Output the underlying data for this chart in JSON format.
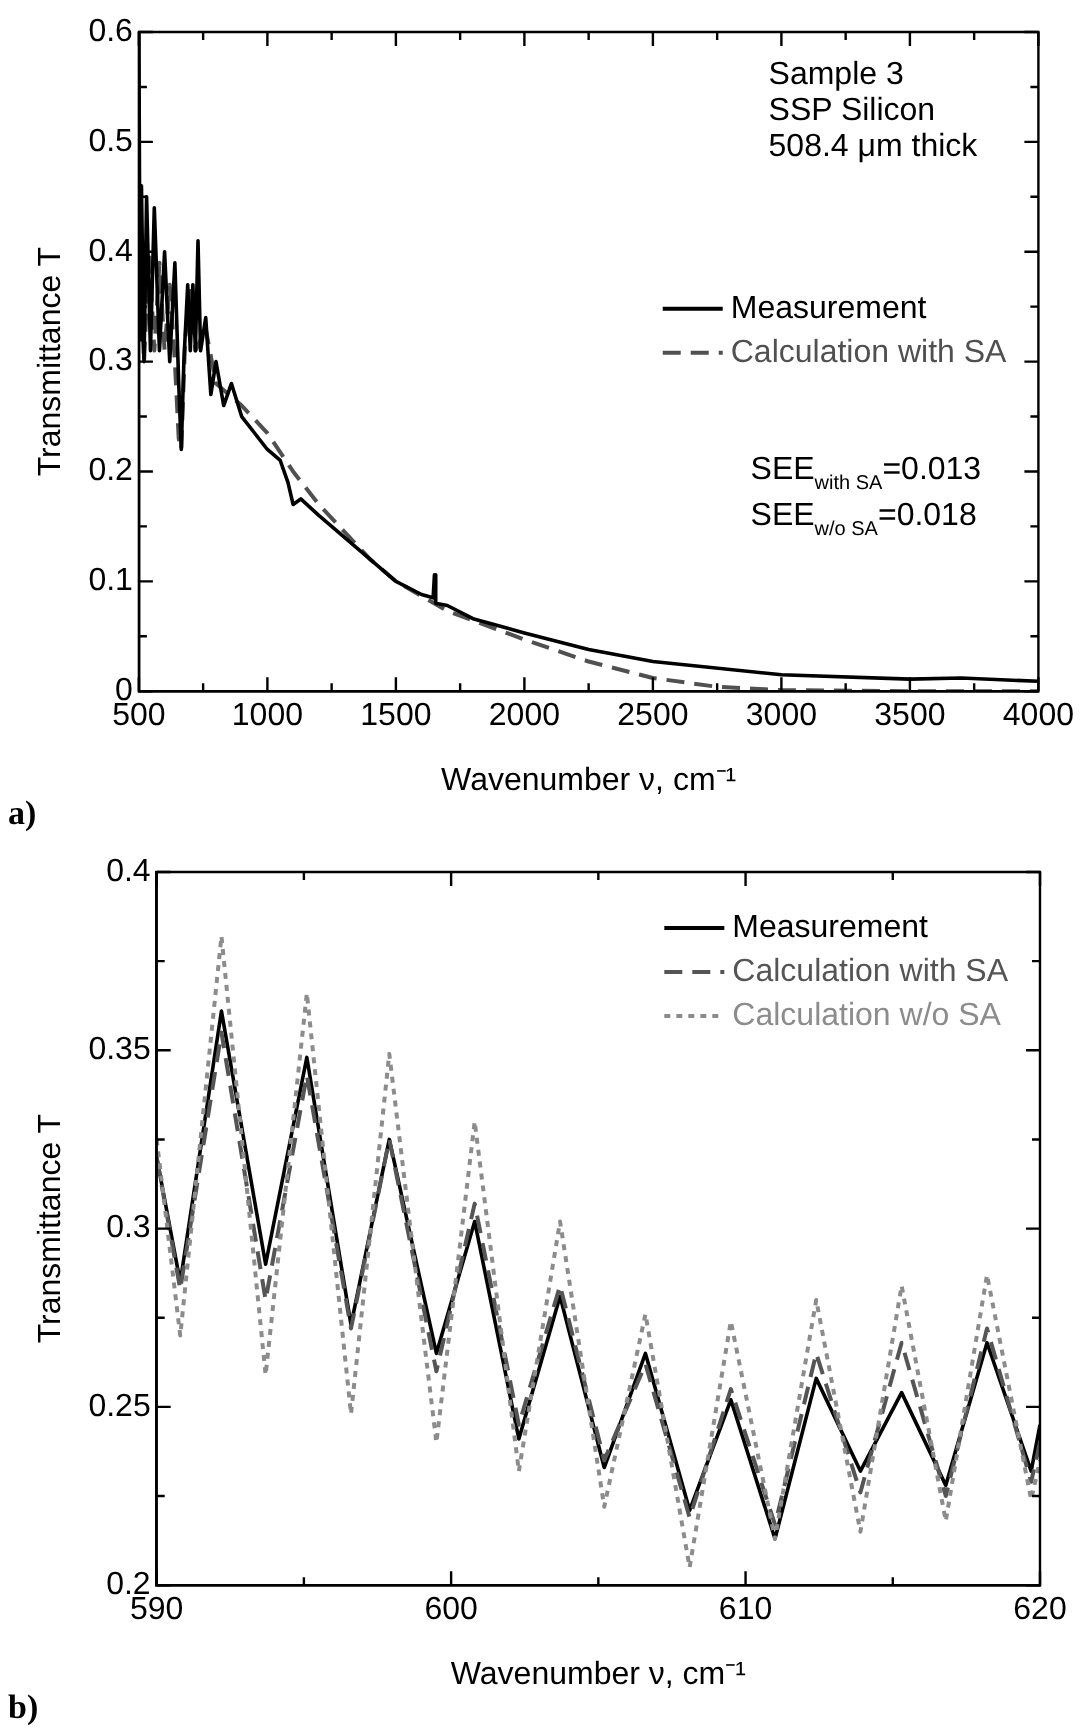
{
  "chart_data": [
    {
      "type": "line",
      "xlabel": "Wavenumber ν, cm⁻¹",
      "ylabel": "Transmittance T",
      "xlim": [
        500,
        4000
      ],
      "ylim": [
        0,
        0.6
      ],
      "xticks": [
        500,
        {
          "value": 750,
          "label": null
        },
        1000,
        {
          "value": 1250,
          "label": null
        },
        1500,
        {
          "value": 1750,
          "label": null
        },
        2000,
        {
          "value": 2250,
          "label": null
        },
        2500,
        {
          "value": 2750,
          "label": null
        },
        3000,
        {
          "value": 3250,
          "label": null
        },
        3500,
        {
          "value": 3750,
          "label": null
        },
        4000
      ],
      "yticks": [
        0,
        {
          "value": 0.05,
          "label": null
        },
        0.1,
        {
          "value": 0.15,
          "label": null
        },
        0.2,
        {
          "value": 0.25,
          "label": null
        },
        0.3,
        {
          "value": 0.35,
          "label": null
        },
        0.4,
        {
          "value": 0.45,
          "label": null
        },
        0.5,
        {
          "value": 0.55,
          "label": null
        },
        0.6
      ],
      "legend": "right",
      "grid": false,
      "marker": "none",
      "annotations": [
        "Sample 3",
        "SSP Silicon",
        "508.4 μm thick",
        "SEE$_{with SA}$=0.013",
        "SEE$_{w/o SA}$=0.018",
        "a)"
      ],
      "series": [
        {
          "name": "Calculation with SA",
          "color": "#505050",
          "line_style": "dashed",
          "x": [
            500,
            520,
            540,
            560,
            580,
            600,
            620,
            640,
            655,
            665,
            680,
            700,
            720,
            760,
            800,
            900,
            1000,
            1100,
            1200,
            1300,
            1400,
            1500,
            1700,
            2000,
            2250,
            2500,
            2750,
            3000,
            3500,
            4000
          ],
          "values": [
            0.4,
            0.3,
            0.4,
            0.31,
            0.39,
            0.31,
            0.37,
            0.3,
            0.23,
            0.22,
            0.32,
            0.37,
            0.31,
            0.33,
            0.28,
            0.26,
            0.235,
            0.2,
            0.17,
            0.145,
            0.12,
            0.1,
            0.073,
            0.047,
            0.027,
            0.012,
            0.004,
            0.001,
            0,
            0
          ]
        },
        {
          "name": "Measurement",
          "color": "#000000",
          "line_style": "solid",
          "x": [
            500,
            505,
            510,
            520,
            530,
            545,
            560,
            580,
            600,
            620,
            640,
            655,
            665,
            675,
            690,
            700,
            710,
            720,
            730,
            740,
            760,
            780,
            800,
            830,
            860,
            900,
            950,
            1000,
            1050,
            1080,
            1100,
            1130,
            1200,
            1300,
            1400,
            1500,
            1600,
            1645,
            1650,
            1655,
            1700,
            1800,
            2000,
            2250,
            2500,
            3000,
            3500,
            3700,
            4000
          ],
          "values": [
            0.6,
            0.32,
            0.46,
            0.3,
            0.45,
            0.31,
            0.44,
            0.31,
            0.4,
            0.3,
            0.39,
            0.28,
            0.22,
            0.3,
            0.37,
            0.31,
            0.37,
            0.31,
            0.41,
            0.31,
            0.34,
            0.27,
            0.3,
            0.26,
            0.28,
            0.25,
            0.235,
            0.22,
            0.21,
            0.19,
            0.17,
            0.175,
            0.16,
            0.14,
            0.12,
            0.1,
            0.088,
            0.085,
            0.106,
            0.08,
            0.078,
            0.066,
            0.053,
            0.038,
            0.027,
            0.015,
            0.011,
            0.012,
            0.009
          ]
        }
      ]
    },
    {
      "type": "line",
      "xlabel": "Wavenumber ν, cm⁻¹",
      "ylabel": "Transmittance T",
      "xlim": [
        590,
        620
      ],
      "ylim": [
        0.2,
        0.4
      ],
      "xticks": [
        590,
        {
          "value": 595,
          "label": null
        },
        600,
        {
          "value": 605,
          "label": null
        },
        610,
        {
          "value": 615,
          "label": null
        },
        620
      ],
      "yticks": [
        0.2,
        {
          "value": 0.225,
          "label": null
        },
        0.25,
        {
          "value": 0.275,
          "label": null
        },
        0.3,
        {
          "value": 0.325,
          "label": null
        },
        0.35,
        {
          "value": 0.375,
          "label": null
        },
        0.4
      ],
      "legend": "top right",
      "grid": false,
      "marker": "none",
      "annotations": [
        "b)"
      ],
      "x": [
        590,
        590.8,
        592.2,
        593.7,
        595.1,
        596.6,
        597.9,
        599.5,
        600.8,
        602.3,
        603.7,
        605.2,
        606.6,
        608.1,
        609.5,
        611,
        612.4,
        613.9,
        615.3,
        616.8,
        618.2,
        619.7,
        620
      ],
      "series": [
        {
          "name": "Measurement",
          "color": "#000000",
          "line_style": "solid",
          "values": [
            0.32,
            0.285,
            0.361,
            0.29,
            0.348,
            0.273,
            0.325,
            0.265,
            0.302,
            0.241,
            0.281,
            0.233,
            0.265,
            0.221,
            0.252,
            0.213,
            0.258,
            0.232,
            0.254,
            0.228,
            0.268,
            0.232,
            0.245
          ]
        },
        {
          "name": "Calculation with SA",
          "color": "#555555",
          "line_style": "dashed",
          "values": [
            0.32,
            0.283,
            0.355,
            0.28,
            0.343,
            0.272,
            0.325,
            0.26,
            0.307,
            0.245,
            0.284,
            0.235,
            0.262,
            0.219,
            0.255,
            0.217,
            0.265,
            0.226,
            0.268,
            0.225,
            0.272,
            0.229,
            0.24
          ]
        },
        {
          "name": "Calculation w/o SA",
          "color": "#8c8c8c",
          "line_style": "dotted",
          "values": [
            0.325,
            0.27,
            0.382,
            0.259,
            0.366,
            0.248,
            0.349,
            0.24,
            0.33,
            0.232,
            0.302,
            0.222,
            0.276,
            0.205,
            0.274,
            0.213,
            0.28,
            0.215,
            0.284,
            0.218,
            0.287,
            0.224,
            0.235
          ]
        }
      ]
    }
  ]
}
